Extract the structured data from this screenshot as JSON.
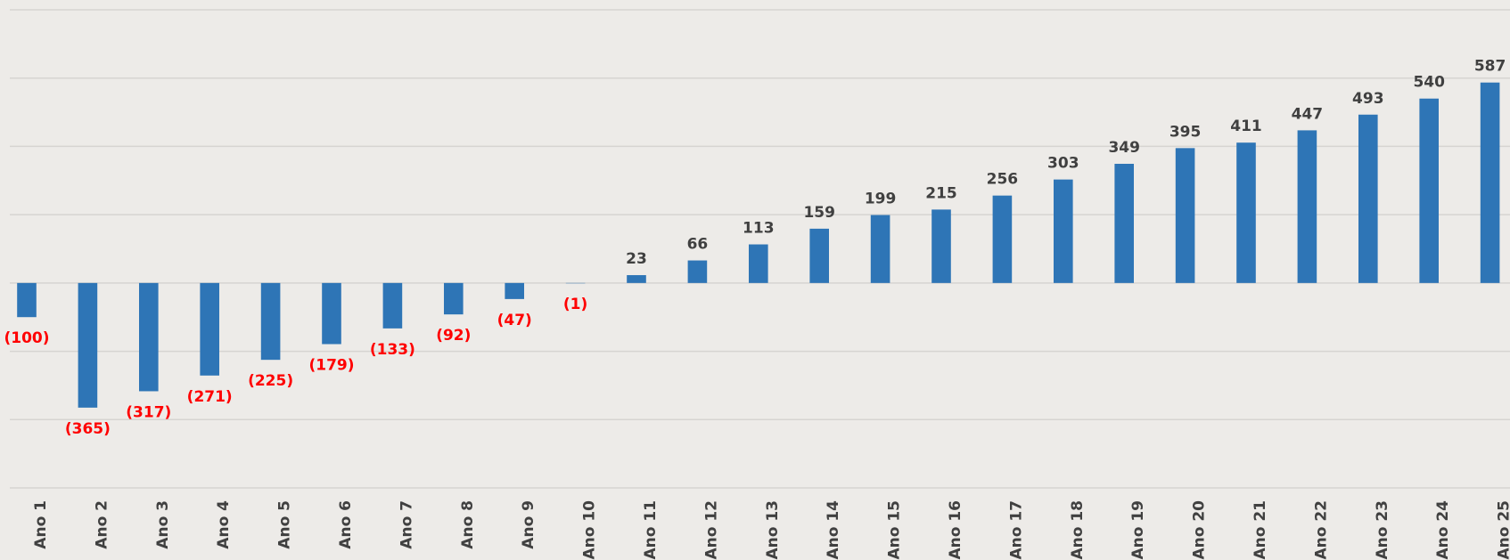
{
  "chart_data": {
    "type": "bar",
    "categories": [
      "Ano 1",
      "Ano 2",
      "Ano 3",
      "Ano 4",
      "Ano 5",
      "Ano 6",
      "Ano 7",
      "Ano 8",
      "Ano 9",
      "Ano 10",
      "Ano 11",
      "Ano 12",
      "Ano 13",
      "Ano 14",
      "Ano 15",
      "Ano 16",
      "Ano 17",
      "Ano 18",
      "Ano 19",
      "Ano 20",
      "Ano 21",
      "Ano 22",
      "Ano 23",
      "Ano 24",
      "Ano 25"
    ],
    "values": [
      -100,
      -365,
      -317,
      -271,
      -225,
      -179,
      -133,
      -92,
      -47,
      -1,
      23,
      66,
      113,
      159,
      199,
      215,
      256,
      303,
      349,
      395,
      411,
      447,
      493,
      540,
      587
    ],
    "value_labels": [
      "(100)",
      "(365)",
      "(317)",
      "(271)",
      "(225)",
      "(179)",
      "(133)",
      "(92)",
      "(47)",
      "(1)",
      "23",
      "66",
      "113",
      "159",
      "199",
      "215",
      "256",
      "303",
      "349",
      "395",
      "411",
      "447",
      "493",
      "540",
      "587"
    ],
    "color": "#2e75b6",
    "label_color": "#404040",
    "negative_label_color": "#ff0000",
    "ylim": [
      -600,
      800
    ],
    "yticks": [
      -600,
      -400,
      -200,
      0,
      200,
      400,
      600,
      800
    ],
    "grid": true
  }
}
